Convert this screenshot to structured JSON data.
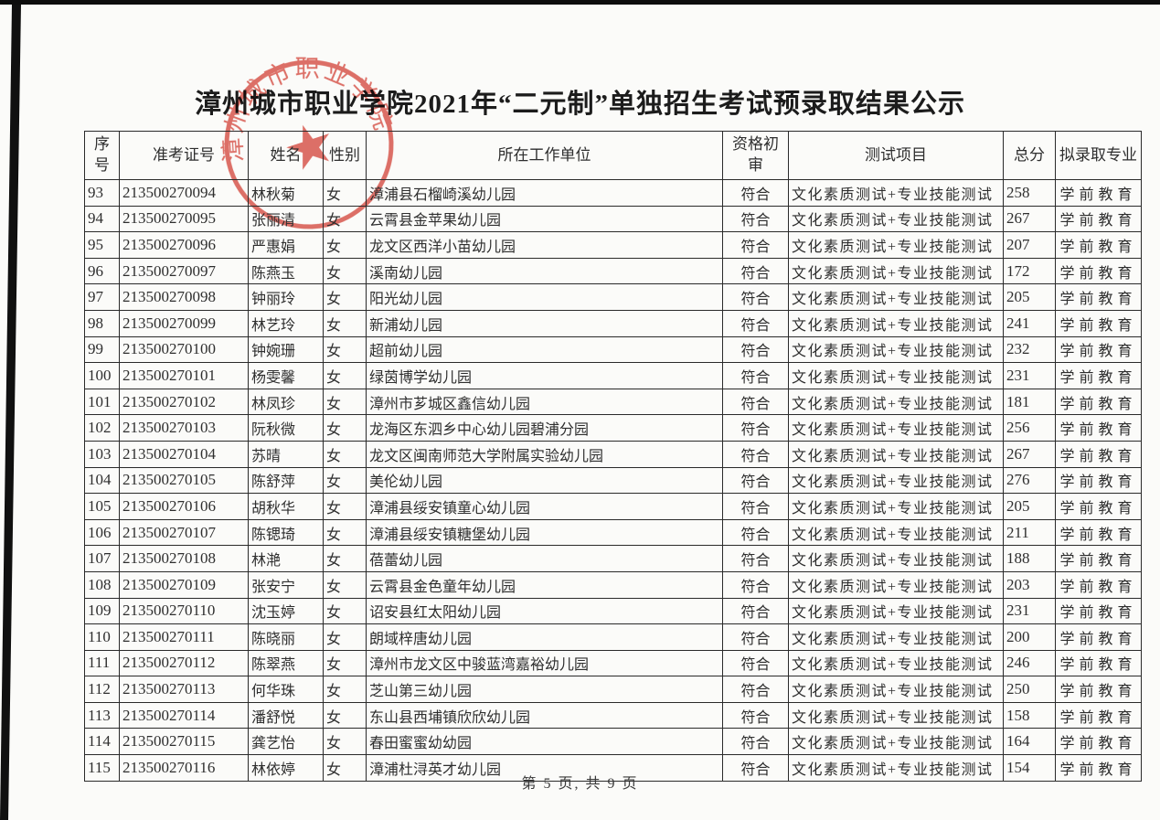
{
  "page": {
    "title": "漳州城市职业学院2021年“二元制”单独招生考试预录取结果公示",
    "footer": "第 5 页, 共 9 页",
    "stamp_text": "漳州城市职业学院",
    "stamp_star": "★",
    "stamp_color": "#d8493e"
  },
  "table": {
    "headers": [
      "序号",
      "准考证号",
      "姓名",
      "性别",
      "所在工作单位",
      "资格初审",
      "测试项目",
      "总分",
      "拟录取专业"
    ],
    "column_keys": [
      "index",
      "ticket-number",
      "name",
      "gender",
      "workplace",
      "qualification-review",
      "test-items",
      "total-score",
      "admitted-major"
    ],
    "rows": [
      [
        "93",
        "213500270094",
        "林秋菊",
        "女",
        "漳浦县石榴崎溪幼儿园",
        "符合",
        "文化素质测试+专业技能测试",
        "258",
        "学前教育"
      ],
      [
        "94",
        "213500270095",
        "张丽清",
        "女",
        "云霄县金苹果幼儿园",
        "符合",
        "文化素质测试+专业技能测试",
        "267",
        "学前教育"
      ],
      [
        "95",
        "213500270096",
        "严惠娟",
        "女",
        "龙文区西洋小苗幼儿园",
        "符合",
        "文化素质测试+专业技能测试",
        "207",
        "学前教育"
      ],
      [
        "96",
        "213500270097",
        "陈燕玉",
        "女",
        "溪南幼儿园",
        "符合",
        "文化素质测试+专业技能测试",
        "172",
        "学前教育"
      ],
      [
        "97",
        "213500270098",
        "钟丽玲",
        "女",
        "阳光幼儿园",
        "符合",
        "文化素质测试+专业技能测试",
        "205",
        "学前教育"
      ],
      [
        "98",
        "213500270099",
        "林艺玲",
        "女",
        "新浦幼儿园",
        "符合",
        "文化素质测试+专业技能测试",
        "241",
        "学前教育"
      ],
      [
        "99",
        "213500270100",
        "钟婉珊",
        "女",
        "超前幼儿园",
        "符合",
        "文化素质测试+专业技能测试",
        "232",
        "学前教育"
      ],
      [
        "100",
        "213500270101",
        "杨雯馨",
        "女",
        "绿茵博学幼儿园",
        "符合",
        "文化素质测试+专业技能测试",
        "231",
        "学前教育"
      ],
      [
        "101",
        "213500270102",
        "林凤珍",
        "女",
        "漳州市芗城区鑫信幼儿园",
        "符合",
        "文化素质测试+专业技能测试",
        "181",
        "学前教育"
      ],
      [
        "102",
        "213500270103",
        "阮秋微",
        "女",
        "龙海区东泗乡中心幼儿园碧浦分园",
        "符合",
        "文化素质测试+专业技能测试",
        "256",
        "学前教育"
      ],
      [
        "103",
        "213500270104",
        "苏晴",
        "女",
        "龙文区闽南师范大学附属实验幼儿园",
        "符合",
        "文化素质测试+专业技能测试",
        "267",
        "学前教育"
      ],
      [
        "104",
        "213500270105",
        "陈舒萍",
        "女",
        "美伦幼儿园",
        "符合",
        "文化素质测试+专业技能测试",
        "276",
        "学前教育"
      ],
      [
        "105",
        "213500270106",
        "胡秋华",
        "女",
        "漳浦县绥安镇童心幼儿园",
        "符合",
        "文化素质测试+专业技能测试",
        "205",
        "学前教育"
      ],
      [
        "106",
        "213500270107",
        "陈锶琦",
        "女",
        "漳浦县绥安镇糖堡幼儿园",
        "符合",
        "文化素质测试+专业技能测试",
        "211",
        "学前教育"
      ],
      [
        "107",
        "213500270108",
        "林滟",
        "女",
        "蓓蕾幼儿园",
        "符合",
        "文化素质测试+专业技能测试",
        "188",
        "学前教育"
      ],
      [
        "108",
        "213500270109",
        "张安宁",
        "女",
        "云霄县金色童年幼儿园",
        "符合",
        "文化素质测试+专业技能测试",
        "203",
        "学前教育"
      ],
      [
        "109",
        "213500270110",
        "沈玉婷",
        "女",
        "诏安县红太阳幼儿园",
        "符合",
        "文化素质测试+专业技能测试",
        "231",
        "学前教育"
      ],
      [
        "110",
        "213500270111",
        "陈晓丽",
        "女",
        "朗域梓唐幼儿园",
        "符合",
        "文化素质测试+专业技能测试",
        "200",
        "学前教育"
      ],
      [
        "111",
        "213500270112",
        "陈翠燕",
        "女",
        "漳州市龙文区中骏蓝湾嘉裕幼儿园",
        "符合",
        "文化素质测试+专业技能测试",
        "246",
        "学前教育"
      ],
      [
        "112",
        "213500270113",
        "何华珠",
        "女",
        "芝山第三幼儿园",
        "符合",
        "文化素质测试+专业技能测试",
        "250",
        "学前教育"
      ],
      [
        "113",
        "213500270114",
        "潘舒悦",
        "女",
        "东山县西埔镇欣欣幼儿园",
        "符合",
        "文化素质测试+专业技能测试",
        "158",
        "学前教育"
      ],
      [
        "114",
        "213500270115",
        "龚艺怡",
        "女",
        "春田蜜蜜幼幼园",
        "符合",
        "文化素质测试+专业技能测试",
        "164",
        "学前教育"
      ],
      [
        "115",
        "213500270116",
        "林依婷",
        "女",
        "漳浦杜浔英才幼儿园",
        "符合",
        "文化素质测试+专业技能测试",
        "154",
        "学前教育"
      ]
    ]
  }
}
